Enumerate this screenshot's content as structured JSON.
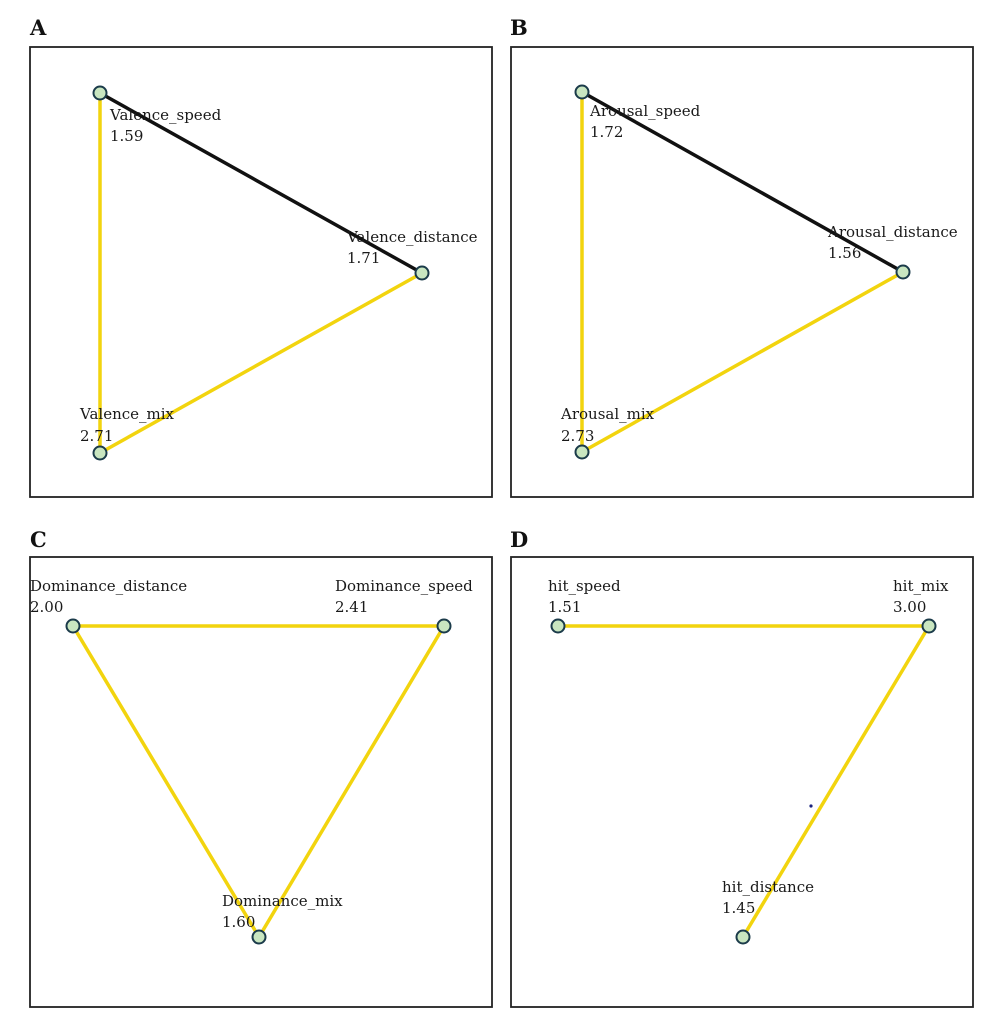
{
  "colors": {
    "significant_edge": "#111111",
    "edge": "#f2d40e",
    "node_fill": "#c9e6c0",
    "node_stroke": "#1b3b4a",
    "stray_dot": "#1a237e"
  },
  "panels": [
    {
      "letter": "A",
      "nodes": [
        {
          "id": "speed",
          "name": "Valence_speed",
          "value": "1.59"
        },
        {
          "id": "distance",
          "name": "Valence_distance",
          "value": "1.71"
        },
        {
          "id": "mix",
          "name": "Valence_mix",
          "value": "2.71"
        }
      ],
      "edges": [
        {
          "from": "speed",
          "to": "distance",
          "color": "significant_edge"
        },
        {
          "from": "speed",
          "to": "mix",
          "color": "edge"
        },
        {
          "from": "distance",
          "to": "mix",
          "color": "edge"
        }
      ]
    },
    {
      "letter": "B",
      "nodes": [
        {
          "id": "speed",
          "name": "Arousal_speed",
          "value": "1.72"
        },
        {
          "id": "distance",
          "name": "Arousal_distance",
          "value": "1.56"
        },
        {
          "id": "mix",
          "name": "Arousal_mix",
          "value": "2.73"
        }
      ],
      "edges": [
        {
          "from": "speed",
          "to": "distance",
          "color": "significant_edge"
        },
        {
          "from": "speed",
          "to": "mix",
          "color": "edge"
        },
        {
          "from": "distance",
          "to": "mix",
          "color": "edge"
        }
      ]
    },
    {
      "letter": "C",
      "nodes": [
        {
          "id": "distance",
          "name": "Dominance_distance",
          "value": "2.00"
        },
        {
          "id": "speed",
          "name": "Dominance_speed",
          "value": "2.41"
        },
        {
          "id": "mix",
          "name": "Dominance_mix",
          "value": "1.60"
        }
      ],
      "edges": [
        {
          "from": "distance",
          "to": "speed",
          "color": "edge"
        },
        {
          "from": "distance",
          "to": "mix",
          "color": "edge"
        },
        {
          "from": "speed",
          "to": "mix",
          "color": "edge"
        }
      ]
    },
    {
      "letter": "D",
      "nodes": [
        {
          "id": "speed",
          "name": "hit_speed",
          "value": "1.51"
        },
        {
          "id": "mix",
          "name": "hit_mix",
          "value": "3.00"
        },
        {
          "id": "distance",
          "name": "hit_distance",
          "value": "1.45"
        }
      ],
      "edges": [
        {
          "from": "speed",
          "to": "mix",
          "color": "edge"
        },
        {
          "from": "mix",
          "to": "distance",
          "color": "edge"
        }
      ]
    }
  ]
}
